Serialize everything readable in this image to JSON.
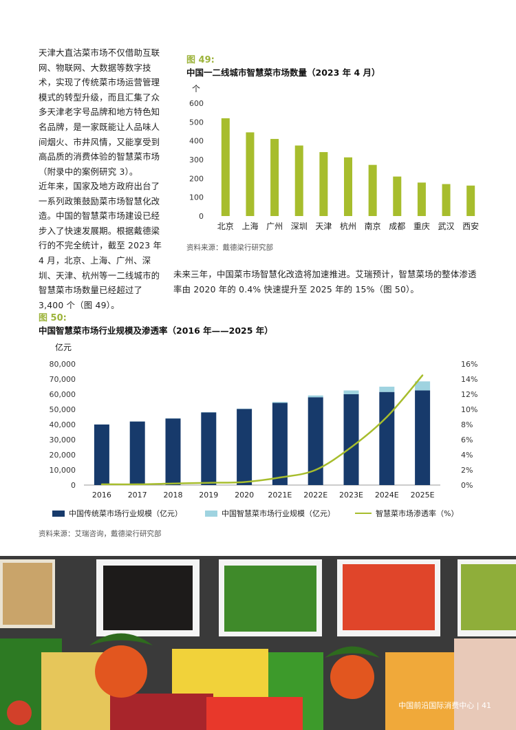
{
  "left_column": {
    "para1": "天津大直沽菜市场不仅借助互联网、物联网、大数据等数字技术，实现了传统菜市场运营管理模式的转型升级，而且汇集了众多天津老字号品牌和地方特色知名品牌，是一家既能让人品味人间烟火、市井风情，又能享受到高品质的消费体验的智慧菜市场（附录中的案例研究 3）。",
    "para2": "近年来，国家及地方政府出台了一系列政策鼓励菜市场智慧化改造。中国的智慧菜市场建设已经步入了快速发展期。根据戴德梁行的不完全统计，截至 2023 年 4 月，北京、上海、广州、深圳、天津、杭州等一二线城市的智慧菜市场数量已经超过了 3,400 个（图 49）。"
  },
  "fig49": {
    "label": "图 49:",
    "title": "中国一二线城市智慧菜市场数量（2023 年 4 月）",
    "unit": "个",
    "source": "资料来源：戴德梁行研究部"
  },
  "middle_text": "未来三年，中国菜市场智慧化改造将加速推进。艾瑞预计，智慧菜场的整体渗透率由 2020 年的 0.4% 快速提升至 2025 年的 15%（图 50）。",
  "fig50": {
    "label": "图 50:",
    "title": "中国智慧菜市场行业规模及渗透率（2016 年——2025 年）",
    "unit": "亿元",
    "legend_traditional": "中国传统菜市场行业规模（亿元）",
    "legend_smart": "中国智慧菜市场行业规模（亿元）",
    "legend_rate": "智慧菜市场渗透率（%）",
    "source": "资料来源：艾瑞咨询，戴德梁行研究部"
  },
  "footer": "中国前沿国际消费中心 | 41",
  "colors": {
    "bar49": "#a7bd2d",
    "traditional": "#173a6b",
    "smart": "#9fd3e0",
    "rate": "#a7bd2d",
    "accent": "#9cb33a"
  },
  "chart_data": [
    {
      "type": "bar",
      "title": "中国一二线城市智慧菜市场数量（2023 年 4 月）",
      "ylabel": "个",
      "categories": [
        "北京",
        "上海",
        "广州",
        "深圳",
        "天津",
        "杭州",
        "南京",
        "成都",
        "重庆",
        "武汉",
        "西安"
      ],
      "values": [
        520,
        445,
        410,
        375,
        340,
        312,
        272,
        210,
        178,
        170,
        162
      ],
      "ylim": [
        0,
        600
      ],
      "yticks": [
        "0",
        "100",
        "200",
        "300",
        "400",
        "500",
        "600"
      ],
      "grid": false
    },
    {
      "type": "bar",
      "title": "中国智慧菜市场行业规模及渗透率（2016 年——2025 年）",
      "ylabel": "亿元",
      "categories": [
        "2016",
        "2017",
        "2018",
        "2019",
        "2020",
        "2021E",
        "2022E",
        "2023E",
        "2024E",
        "2025E"
      ],
      "series": [
        {
          "name": "中国传统菜市场行业规模（亿元）",
          "type": "bar",
          "values": [
            40000,
            42000,
            44000,
            48000,
            50300,
            54300,
            58000,
            60000,
            61500,
            62500
          ]
        },
        {
          "name": "中国智慧菜市场行业规模（亿元）",
          "type": "bar",
          "values": [
            40,
            60,
            100,
            150,
            200,
            600,
            1200,
            2500,
            3500,
            6000
          ]
        },
        {
          "name": "智慧菜市场渗透率（%）",
          "type": "line",
          "axis": "right",
          "values": [
            0.1,
            0.1,
            0.2,
            0.3,
            0.4,
            1.0,
            2.0,
            5.0,
            9.0,
            14.5
          ]
        }
      ],
      "ylim": [
        0,
        80000
      ],
      "yticks": [
        "0",
        "10,000",
        "20,000",
        "30,000",
        "40,000",
        "50,000",
        "60,000",
        "70,000",
        "80,000"
      ],
      "y2lim": [
        0,
        16
      ],
      "y2ticks": [
        "0%",
        "2%",
        "4%",
        "6%",
        "8%",
        "10%",
        "12%",
        "14%",
        "16%"
      ],
      "grid": false,
      "legend": "bottom"
    }
  ]
}
